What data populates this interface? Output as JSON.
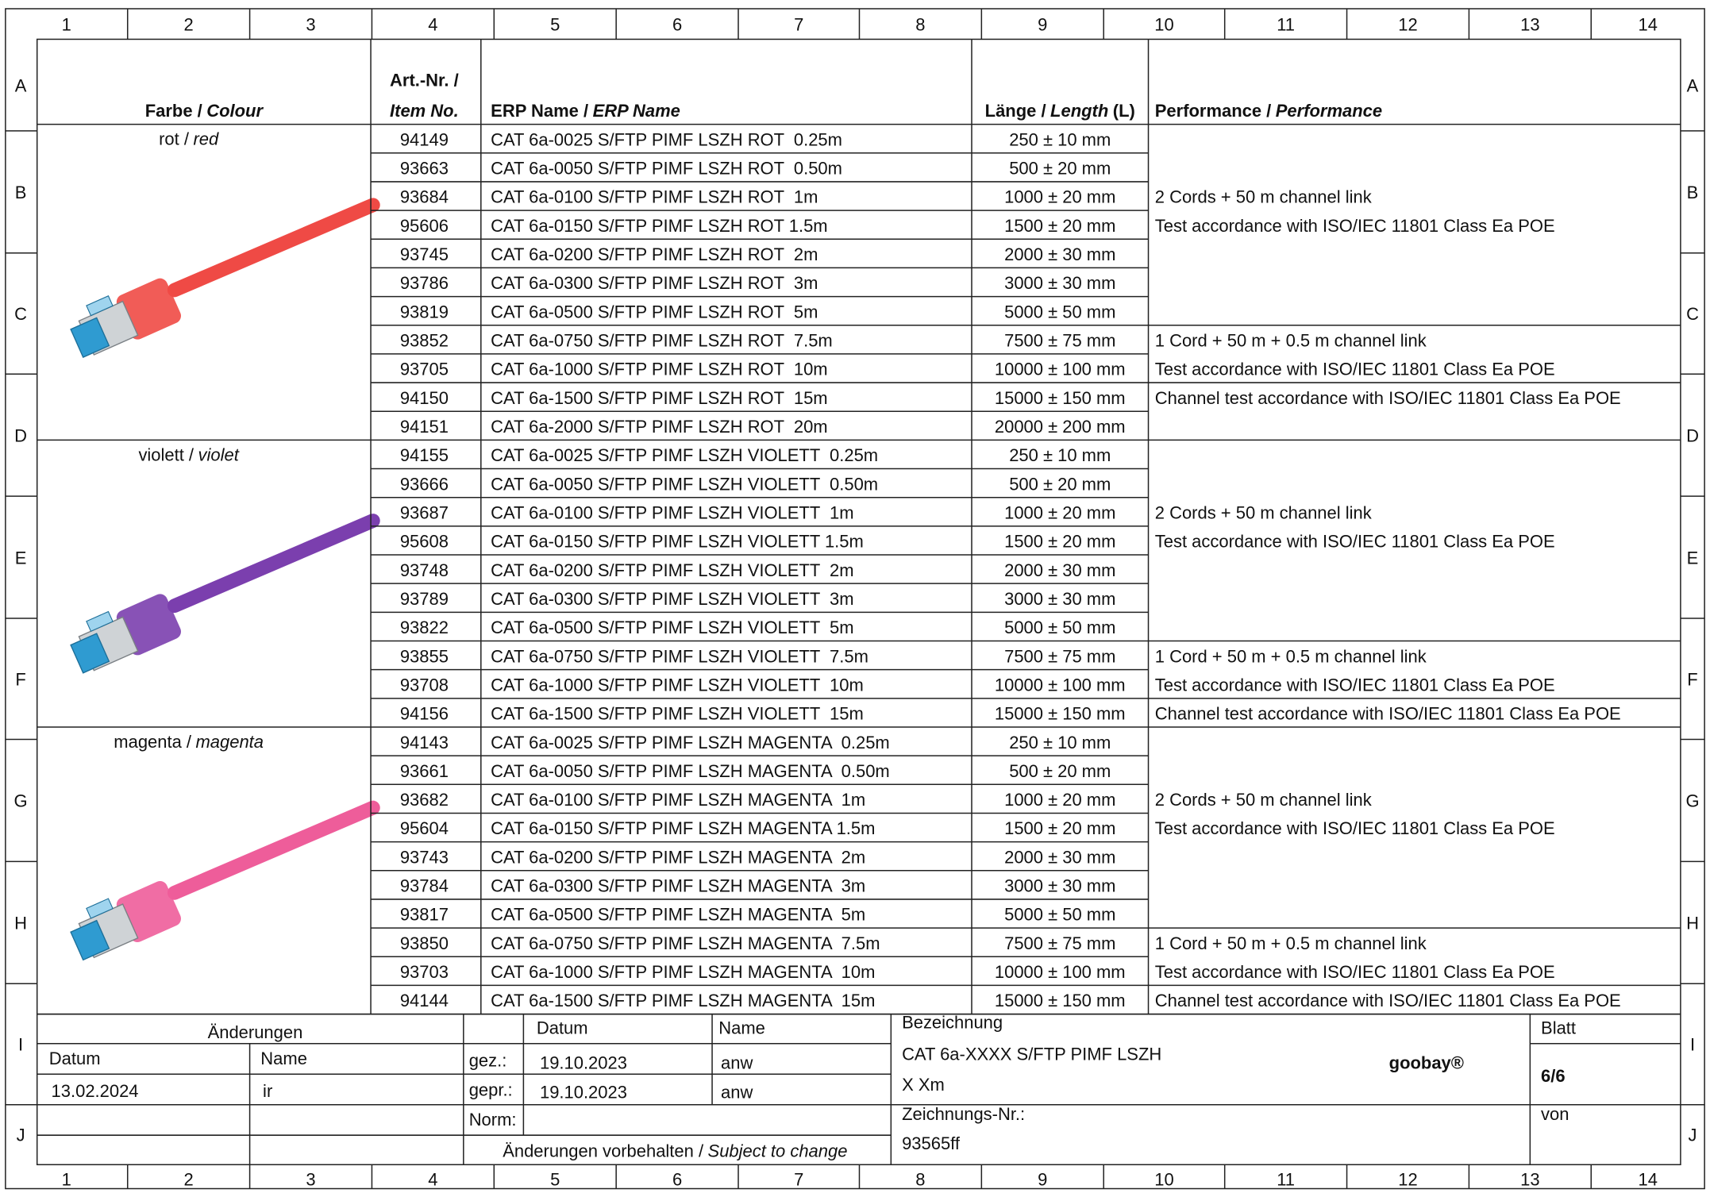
{
  "frame": {
    "columns": [
      "1",
      "2",
      "3",
      "4",
      "5",
      "6",
      "7",
      "8",
      "9",
      "10",
      "11",
      "12",
      "13",
      "14"
    ],
    "rows": [
      "A",
      "B",
      "C",
      "D",
      "E",
      "F",
      "G",
      "H",
      "I",
      "J"
    ]
  },
  "table": {
    "header": {
      "colour": [
        "Farbe /",
        "Colour"
      ],
      "item": [
        "Art.-Nr. /",
        "Item No."
      ],
      "erp": [
        "ERP Name /",
        "ERP Name"
      ],
      "length": [
        "Länge /",
        "Length",
        "(L)"
      ],
      "performance": [
        "Performance /",
        "Performance"
      ]
    },
    "groups": [
      {
        "colour": [
          "rot /",
          "red"
        ],
        "rows": [
          [
            "94149",
            "CAT 6a-0025 S/FTP PIMF LSZH ROT  0.25m",
            "250 ± 10 mm"
          ],
          [
            "93663",
            "CAT 6a-0050 S/FTP PIMF LSZH ROT  0.50m",
            "500 ± 20 mm"
          ],
          [
            "93684",
            "CAT 6a-0100 S/FTP PIMF LSZH ROT  1m",
            "1000 ± 20 mm"
          ],
          [
            "95606",
            "CAT 6a-0150 S/FTP PIMF LSZH ROT 1.5m",
            "1500 ± 20 mm"
          ],
          [
            "93745",
            "CAT 6a-0200 S/FTP PIMF LSZH ROT  2m",
            "2000 ± 30 mm"
          ],
          [
            "93786",
            "CAT 6a-0300 S/FTP PIMF LSZH ROT  3m",
            "3000 ± 30 mm"
          ],
          [
            "93819",
            "CAT 6a-0500 S/FTP PIMF LSZH ROT  5m",
            "5000 ± 50 mm"
          ],
          [
            "93852",
            "CAT 6a-0750 S/FTP PIMF LSZH ROT  7.5m",
            "7500 ± 75 mm"
          ],
          [
            "93705",
            "CAT 6a-1000 S/FTP PIMF LSZH ROT  10m",
            "10000 ± 100 mm"
          ],
          [
            "94150",
            "CAT 6a-1500 S/FTP PIMF LSZH ROT  15m",
            "15000 ± 150 mm"
          ],
          [
            "94151",
            "CAT 6a-2000 S/FTP PIMF LSZH ROT  20m",
            "20000 ± 200 mm"
          ]
        ],
        "notes": [
          {
            "rowspan": 7,
            "lines": [
              "2 Cords + 50 m channel link",
              "Test accordance with ISO/IEC 11801 Class Ea POE"
            ]
          },
          {
            "rowspan": 2,
            "lines": [
              "1 Cord + 50 m + 0.5 m channel link",
              "Test accordance with ISO/IEC 11801 Class Ea POE"
            ]
          },
          {
            "rowspan": 2,
            "lines": [
              "Channel test accordance with ISO/IEC 11801 Class Ea POE"
            ]
          }
        ]
      },
      {
        "colour": [
          "violett /",
          "violet"
        ],
        "rows": [
          [
            "94155",
            "CAT 6a-0025 S/FTP PIMF LSZH VIOLETT  0.25m",
            "250 ± 10 mm"
          ],
          [
            "93666",
            "CAT 6a-0050 S/FTP PIMF LSZH VIOLETT  0.50m",
            "500 ± 20 mm"
          ],
          [
            "93687",
            "CAT 6a-0100 S/FTP PIMF LSZH VIOLETT  1m",
            "1000 ± 20 mm"
          ],
          [
            "95608",
            "CAT 6a-0150 S/FTP PIMF LSZH VIOLETT 1.5m",
            "1500 ± 20 mm"
          ],
          [
            "93748",
            "CAT 6a-0200 S/FTP PIMF LSZH VIOLETT  2m",
            "2000 ± 30 mm"
          ],
          [
            "93789",
            "CAT 6a-0300 S/FTP PIMF LSZH VIOLETT  3m",
            "3000 ± 30 mm"
          ],
          [
            "93822",
            "CAT 6a-0500 S/FTP PIMF LSZH VIOLETT  5m",
            "5000 ± 50 mm"
          ],
          [
            "93855",
            "CAT 6a-0750 S/FTP PIMF LSZH VIOLETT  7.5m",
            "7500 ± 75 mm"
          ],
          [
            "93708",
            "CAT 6a-1000 S/FTP PIMF LSZH VIOLETT  10m",
            "10000 ± 100 mm"
          ],
          [
            "94156",
            "CAT 6a-1500 S/FTP PIMF LSZH VIOLETT  15m",
            "15000 ± 150 mm"
          ]
        ],
        "notes": [
          {
            "rowspan": 7,
            "lines": [
              "2 Cords + 50 m channel link",
              "Test accordance with ISO/IEC 11801 Class Ea POE"
            ]
          },
          {
            "rowspan": 2,
            "lines": [
              "1 Cord + 50 m + 0.5 m channel link",
              "Test accordance with ISO/IEC 11801 Class Ea POE"
            ]
          },
          {
            "rowspan": 1,
            "lines": [
              "Channel test accordance with ISO/IEC 11801 Class Ea POE"
            ]
          }
        ]
      },
      {
        "colour": [
          "magenta /",
          "magenta"
        ],
        "rows": [
          [
            "94143",
            "CAT 6a-0025 S/FTP PIMF LSZH MAGENTA  0.25m",
            "250 ± 10 mm"
          ],
          [
            "93661",
            "CAT 6a-0050 S/FTP PIMF LSZH MAGENTA  0.50m",
            "500 ± 20 mm"
          ],
          [
            "93682",
            "CAT 6a-0100 S/FTP PIMF LSZH MAGENTA  1m",
            "1000 ± 20 mm"
          ],
          [
            "95604",
            "CAT 6a-0150 S/FTP PIMF LSZH MAGENTA 1.5m",
            "1500 ± 20 mm"
          ],
          [
            "93743",
            "CAT 6a-0200 S/FTP PIMF LSZH MAGENTA  2m",
            "2000 ± 30 mm"
          ],
          [
            "93784",
            "CAT 6a-0300 S/FTP PIMF LSZH MAGENTA  3m",
            "3000 ± 30 mm"
          ],
          [
            "93817",
            "CAT 6a-0500 S/FTP PIMF LSZH MAGENTA  5m",
            "5000 ± 50 mm"
          ],
          [
            "93850",
            "CAT 6a-0750 S/FTP PIMF LSZH MAGENTA  7.5m",
            "7500 ± 75 mm"
          ],
          [
            "93703",
            "CAT 6a-1000 S/FTP PIMF LSZH MAGENTA  10m",
            "10000 ± 100 mm"
          ],
          [
            "94144",
            "CAT 6a-1500 S/FTP PIMF LSZH MAGENTA  15m",
            "15000 ± 150 mm"
          ]
        ],
        "notes": [
          {
            "rowspan": 7,
            "lines": [
              "2 Cords + 50 m channel link",
              "Test accordance with ISO/IEC 11801 Class Ea POE"
            ]
          },
          {
            "rowspan": 2,
            "lines": [
              "1 Cord + 50 m + 0.5 m channel link",
              "Test accordance with ISO/IEC 11801 Class Ea POE"
            ]
          },
          {
            "rowspan": 1,
            "lines": [
              "Channel test accordance with ISO/IEC 11801 Class Ea POE"
            ]
          }
        ]
      }
    ]
  },
  "title_block": {
    "changes": {
      "title": "Änderungen",
      "headers": [
        "Datum",
        "Name"
      ],
      "rows": [
        [
          "13.02.2024",
          "ir"
        ]
      ]
    },
    "approval": {
      "headers": [
        "Datum",
        "Name"
      ],
      "rows": [
        [
          "gez.:",
          "19.10.2023",
          "anw"
        ],
        [
          "gepr.:",
          "19.10.2023",
          "anw"
        ]
      ],
      "norm": "Norm:",
      "note": [
        "Änderungen vorbehalten /",
        "Subject to change"
      ]
    },
    "designation": {
      "label": "Bezeichnung",
      "lines": [
        "CAT 6a-XXXX S/FTP PIMF LSZH",
        "X Xm"
      ]
    },
    "logo": "goobay®",
    "sheet": {
      "label": "Blatt",
      "value": "6/6",
      "of": "von"
    },
    "drawing_no": {
      "label": "Zeichnungs-Nr.:",
      "value": "93565ff"
    }
  }
}
